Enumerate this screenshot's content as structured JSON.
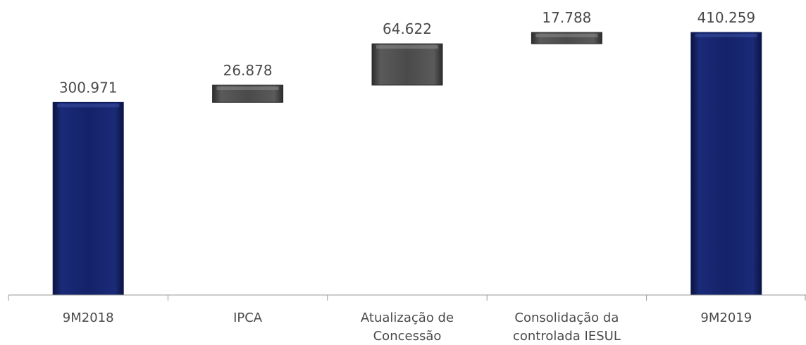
{
  "chart_data": {
    "type": "bar",
    "subtype": "waterfall",
    "title": "",
    "xlabel": "",
    "ylabel": "",
    "categories": [
      [
        "9M2018"
      ],
      [
        "IPCA"
      ],
      [
        "Atualização de",
        "Concessão"
      ],
      [
        "Consolidação da",
        "controlada  IESUL"
      ],
      [
        "9M2019"
      ]
    ],
    "steps": [
      {
        "kind": "total",
        "value": 300971,
        "label": "300.971"
      },
      {
        "kind": "delta",
        "value": 26878,
        "label": "26.878"
      },
      {
        "kind": "delta",
        "value": 64622,
        "label": "64.622"
      },
      {
        "kind": "delta",
        "value": 17788,
        "label": "17.788"
      },
      {
        "kind": "total",
        "value": 410259,
        "label": "410.259"
      }
    ],
    "ylim": [
      0,
      410259
    ],
    "grid": false,
    "legend": "none",
    "colors": {
      "total": "#0f1d5c",
      "delta": "#4b4b4b",
      "axis": "#9a9a9a",
      "text": "#4a4a4a"
    }
  }
}
